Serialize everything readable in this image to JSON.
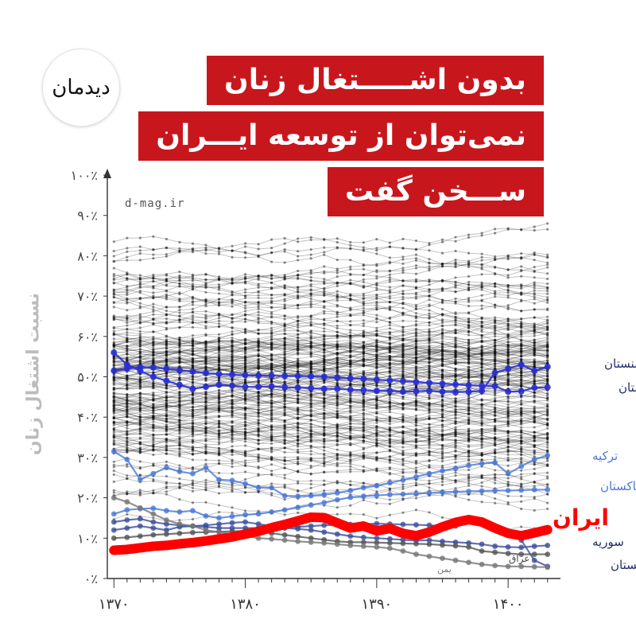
{
  "title_lines": [
    "بدون اشـــــتغال زنان",
    "نمی‌توان از توسعه ایـــران",
    "ســـخن گفت"
  ],
  "logo_text": "دیدمان",
  "watermark": "d-mag.ir",
  "colors": {
    "title_bg": "#c8161d",
    "iran": "#ff0000",
    "blue_dark": "#2a2fd6",
    "blue_light": "#4a78d8",
    "background_lines": "#222222"
  },
  "chart_data": {
    "type": "line",
    "title": "بدون اشتغال زنان نمی‌توان از توسعه ایران سخن گفت",
    "xlabel": "",
    "ylabel": "نسبت اشتغال زنان",
    "xlim": [
      1369.5,
      1403.5
    ],
    "ylim": [
      0,
      100
    ],
    "x_ticks": [
      1370,
      1380,
      1390,
      1400
    ],
    "x_tick_labels": [
      "۱۳۷۰",
      "۱۳۸۰",
      "۱۳۹۰",
      "۱۴۰۰"
    ],
    "y_ticks": [
      0,
      10,
      20,
      30,
      40,
      50,
      60,
      70,
      80,
      90,
      100
    ],
    "y_tick_labels": [
      "۰٪",
      "۱۰٪",
      "۲۰٪",
      "۳۰٪",
      "۴۰٪",
      "۵۰٪",
      "۶۰٪",
      "۷۰٪",
      "۸۰٪",
      "۹۰٪",
      "۱۰۰٪"
    ],
    "x": [
      1370,
      1371,
      1372,
      1373,
      1374,
      1375,
      1376,
      1377,
      1378,
      1379,
      1380,
      1381,
      1382,
      1383,
      1384,
      1385,
      1386,
      1387,
      1388,
      1389,
      1390,
      1391,
      1392,
      1393,
      1394,
      1395,
      1396,
      1397,
      1398,
      1399,
      1400,
      1401,
      1402,
      1403
    ],
    "background_series_count": 180,
    "series": [
      {
        "name": "ایران",
        "color": "#ff0000",
        "highlight": true,
        "values": [
          7.0,
          7.2,
          7.6,
          8.0,
          8.2,
          8.6,
          8.9,
          9.3,
          9.8,
          10.3,
          11.0,
          11.7,
          12.6,
          13.4,
          14.3,
          15.2,
          15.1,
          13.8,
          12.5,
          13.0,
          11.8,
          12.4,
          11.2,
          10.6,
          11.5,
          12.8,
          13.9,
          14.6,
          14.0,
          12.5,
          11.2,
          10.6,
          11.3,
          12.1
        ]
      },
      {
        "name": "ارمنستان",
        "color": "#2a2fd6",
        "values": [
          56.0,
          53.0,
          51.5,
          50.0,
          49.0,
          48.0,
          47.0,
          47.5,
          48.0,
          47.8,
          47.5,
          47.5,
          47.6,
          47.4,
          47.3,
          47.2,
          47.0,
          47.0,
          46.8,
          46.7,
          46.5,
          46.5,
          46.3,
          46.4,
          46.5,
          46.3,
          46.2,
          46.3,
          46.5,
          51.0,
          52.0,
          53.0,
          51.5,
          52.5
        ]
      },
      {
        "name": "ترکمنستان",
        "color": "#2a2fd6",
        "values": [
          51.5,
          52.0,
          52.4,
          52.3,
          52.0,
          51.6,
          51.3,
          50.9,
          50.7,
          50.5,
          50.4,
          50.3,
          50.3,
          50.2,
          50.2,
          50.1,
          50.0,
          49.8,
          49.6,
          49.5,
          49.3,
          49.1,
          48.9,
          48.7,
          48.5,
          48.3,
          48.1,
          47.9,
          47.8,
          47.7,
          46.3,
          46.4,
          47.3,
          47.4
        ]
      },
      {
        "name": "ترکیه",
        "color": "#4a78d8",
        "values": [
          31.5,
          29.5,
          24.5,
          26.0,
          27.5,
          26.5,
          26.0,
          27.5,
          24.5,
          24.3,
          23.5,
          22.5,
          22.5,
          20.5,
          20.4,
          20.5,
          20.8,
          21.2,
          21.8,
          22.5,
          23.0,
          23.7,
          24.4,
          25.2,
          26.0,
          26.7,
          27.3,
          28.0,
          28.5,
          28.7,
          26.0,
          27.8,
          29.5,
          30.5
        ]
      },
      {
        "name": "پاکستان",
        "color": "#4a78d8",
        "values": [
          16.0,
          17.0,
          17.3,
          17.4,
          16.8,
          16.5,
          16.8,
          15.5,
          15.0,
          15.4,
          15.8,
          16.0,
          16.5,
          17.0,
          17.6,
          18.2,
          18.8,
          19.5,
          20.1,
          20.4,
          20.6,
          20.8,
          20.9,
          21.0,
          21.2,
          21.4,
          21.5,
          21.6,
          21.7,
          21.8,
          21.8,
          21.9,
          22.0,
          22.0
        ]
      },
      {
        "name": "سوریه",
        "color": "#3c4f9c",
        "values": [
          12.0,
          12.5,
          13.0,
          12.5,
          12.0,
          12.8,
          13.0,
          13.2,
          13.5,
          13.8,
          14.0,
          13.5,
          13.0,
          12.5,
          12.3,
          12.0,
          11.5,
          11.0,
          10.5,
          10.2,
          10.0,
          9.8,
          9.6,
          9.4,
          9.5,
          9.2,
          9.0,
          8.8,
          8.5,
          8.0,
          7.8,
          7.7,
          8.0,
          8.2
        ]
      },
      {
        "name": "افغانستان",
        "color": "#3c4f9c",
        "values": [
          14.0,
          14.5,
          14.8,
          14.0,
          13.5,
          13.2,
          13.0,
          12.8,
          12.5,
          12.5,
          12.5,
          12.5,
          12.5,
          12.6,
          12.8,
          13.0,
          13.2,
          13.3,
          13.4,
          13.5,
          13.6,
          13.5,
          13.4,
          13.3,
          13.2,
          13.0,
          13.0,
          15.0,
          14.5,
          13.0,
          11.0,
          9.5,
          4.5,
          3.0
        ]
      },
      {
        "name": "عراق",
        "color": "#555555",
        "values": [
          10.0,
          10.2,
          10.5,
          10.8,
          11.0,
          11.2,
          11.4,
          11.5,
          11.6,
          11.7,
          11.8,
          11.6,
          11.2,
          10.8,
          10.4,
          10.0,
          9.6,
          9.2,
          9.0,
          9.0,
          8.9,
          8.8,
          8.7,
          8.6,
          8.5,
          8.3,
          8.1,
          7.8,
          6.8,
          6.5,
          6.2,
          6.0,
          6.0,
          6.0
        ]
      },
      {
        "name": "یمن",
        "color": "#777777",
        "values": [
          20.0,
          19.0,
          17.5,
          16.0,
          14.5,
          13.5,
          13.0,
          12.0,
          11.5,
          11.0,
          10.5,
          10.0,
          9.8,
          9.5,
          9.2,
          9.0,
          8.8,
          8.5,
          8.2,
          8.0,
          7.8,
          7.5,
          6.8,
          6.0,
          5.5,
          5.0,
          4.5,
          4.0,
          3.5,
          3.2,
          3.0,
          3.0,
          2.9,
          2.8
        ]
      }
    ]
  }
}
